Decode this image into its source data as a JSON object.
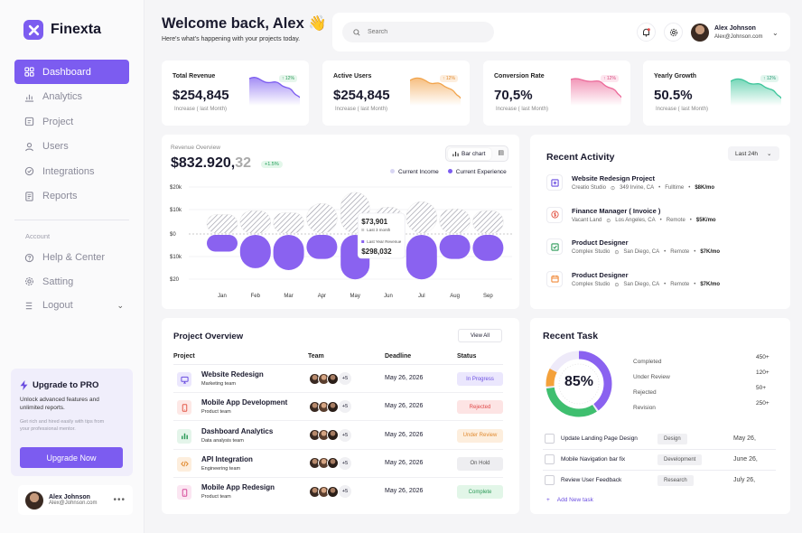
{
  "app": {
    "name": "Finexta"
  },
  "sidebar": {
    "items": [
      {
        "label": "Dashboard",
        "icon": "grid-icon",
        "active": true
      },
      {
        "label": "Analytics",
        "icon": "bar-chart-icon"
      },
      {
        "label": "Project",
        "icon": "folder-icon"
      },
      {
        "label": "Users",
        "icon": "user-icon"
      },
      {
        "label": "Integrations",
        "icon": "integration-icon"
      },
      {
        "label": "Reports",
        "icon": "report-icon"
      }
    ],
    "account_label": "Account",
    "account_items": [
      {
        "label": "Help & Center",
        "icon": "help-icon"
      },
      {
        "label": "Satting",
        "icon": "gear-icon"
      },
      {
        "label": "Logout",
        "icon": "logout-icon"
      }
    ],
    "upgrade": {
      "title": "Upgrade to PRO",
      "text": "Unlock advanced features and unlimited reports.",
      "note": "Get rich and hired easily with tips from your professional mentor.",
      "button": "Upgrade Now"
    },
    "profile": {
      "name": "Alex Johnson",
      "email": "Alex@Johnson.com"
    }
  },
  "header": {
    "title": "Welcome back, Alex",
    "wave": "👋",
    "subtitle": "Here's what's happening with your projects today.",
    "search_placeholder": "Search",
    "user": {
      "name": "Alex Johnson",
      "email": "Alex@Johnson.com"
    }
  },
  "stats": [
    {
      "label": "Total Revenue",
      "value": "$254,845",
      "sub": "Increase ( last Month)",
      "badge": "↑ 12%",
      "color": "#7c5cf0"
    },
    {
      "label": "Active Users",
      "value": "$254,845",
      "sub": "Increase ( last Month)",
      "badge": "↑ 12%",
      "color": "#f2a34a"
    },
    {
      "label": "Conversion Rate",
      "value": "70,5%",
      "sub": "Increase ( last Month)",
      "badge": "↑ 12%",
      "color": "#ec6a9a"
    },
    {
      "label": "Yearly Growth",
      "value": "50.5%",
      "sub": "Increase ( last Month)",
      "badge": "↑ 12%",
      "color": "#3cc59a"
    }
  ],
  "revenue": {
    "title": "Revenue Overview",
    "value_main": "$832.920,",
    "value_dec": "32",
    "pct": "+1.5%",
    "toggle_label": "Bar chart",
    "tooltip": {
      "value1": "$73,901",
      "label1": "Last 3 month",
      "label2": "Last Year Revenue",
      "value2": "$298,032"
    }
  },
  "chart_data": {
    "type": "bar",
    "categories": [
      "Jan",
      "Feb",
      "Mar",
      "Apr",
      "May",
      "Jun",
      "Jul",
      "Aug",
      "Sep"
    ],
    "yticks": [
      "$20k",
      "$10k",
      "$0",
      "$10k",
      "$20"
    ],
    "series": [
      {
        "name": "Current Income",
        "values": [
          10,
          12,
          11,
          16,
          22,
          14,
          17,
          13,
          12
        ],
        "color": "#cfcfd6"
      },
      {
        "name": "Current Experience",
        "values": [
          -9,
          -18,
          -19,
          -13,
          -24,
          -11,
          -24,
          -13,
          -14
        ],
        "color": "#8a62f0"
      }
    ],
    "highlight": "May"
  },
  "activity": {
    "title": "Recent Activity",
    "filter": "Last 24h",
    "items": [
      {
        "name": "Website Redesign Project",
        "company": "Creatio Studio",
        "location": "349 Irvine, CA",
        "type": "Fulltime",
        "salary": "$8K/mo",
        "icon": "add-square-icon",
        "color": "#6b4ee0"
      },
      {
        "name": "Finance Manager ( Invoice )",
        "company": "Vacant Land",
        "location": "Los Angeles, CA",
        "type": "Remote",
        "salary": "$5K/mo",
        "icon": "dollar-icon",
        "color": "#e35a4a"
      },
      {
        "name": "Product Designer",
        "company": "Complex Studio",
        "location": "San Diego, CA",
        "type": "Remote",
        "salary": "$7K/mo",
        "icon": "check-square-icon",
        "color": "#2c9a58"
      },
      {
        "name": "Product Designer",
        "company": "Complex Studio",
        "location": "San Diego, CA",
        "type": "Remote",
        "salary": "$7K/mo",
        "icon": "calendar-icon",
        "color": "#f08a3a"
      }
    ]
  },
  "projects": {
    "title": "Project Overview",
    "view_all": "View All",
    "headers": [
      "Project",
      "Team",
      "Deadline",
      "Status"
    ],
    "rows": [
      {
        "name": "Website Redesign",
        "team": "Marketing team",
        "more": "+5",
        "deadline": "May 26, 2026",
        "status": "In Progress",
        "status_bg": "#ebe7fd",
        "status_fg": "#6b4ee0",
        "icon_bg": "#ebe7fd",
        "icon_fg": "#6b4ee0",
        "icon": "monitor-icon"
      },
      {
        "name": "Mobile App Development",
        "team": "Product team",
        "more": "+5",
        "deadline": "May 26, 2026",
        "status": "Rejected",
        "status_bg": "#fde4e4",
        "status_fg": "#e04848",
        "icon_bg": "#fde8e6",
        "icon_fg": "#e35a4a",
        "icon": "phone-icon"
      },
      {
        "name": "Dashboard Analytics",
        "team": "Data analysis team",
        "more": "+5",
        "deadline": "May 26, 2026",
        "status": "Under Review",
        "status_bg": "#fdeedd",
        "status_fg": "#e08a30",
        "icon_bg": "#e4f5ea",
        "icon_fg": "#2c9a58",
        "icon": "bar-chart-icon"
      },
      {
        "name": "API Integration",
        "team": "Engineering team",
        "more": "+5",
        "deadline": "May 26, 2026",
        "status": "On Hold",
        "status_bg": "#eeeef1",
        "status_fg": "#555",
        "icon_bg": "#fdeedd",
        "icon_fg": "#e08a30",
        "icon": "code-icon"
      },
      {
        "name": "Mobile App Redesign",
        "team": "Product team",
        "more": "+5",
        "deadline": "May 26, 2026",
        "status": "Complete",
        "status_bg": "#e2f6e8",
        "status_fg": "#2c9a58",
        "icon_bg": "#fbe6f2",
        "icon_fg": "#d64a9a",
        "icon": "phone-icon"
      }
    ]
  },
  "task": {
    "title": "Recent Task",
    "percent": "85%",
    "progress": 0.85,
    "stats": [
      {
        "label": "Completed",
        "value": "450+"
      },
      {
        "label": "Under Review",
        "value": "120+"
      },
      {
        "label": "Rejected",
        "value": "50+"
      },
      {
        "label": "Revision",
        "value": "250+"
      }
    ],
    "items": [
      {
        "name": "Update Landing Page Design",
        "tag": "Design",
        "date": "May 26,"
      },
      {
        "name": "Mobile Navigation bar fix",
        "tag": "Development",
        "date": "June 26,"
      },
      {
        "name": "Review User Feedback",
        "tag": "Research",
        "date": "July 26,"
      }
    ],
    "add": "Add New task"
  }
}
